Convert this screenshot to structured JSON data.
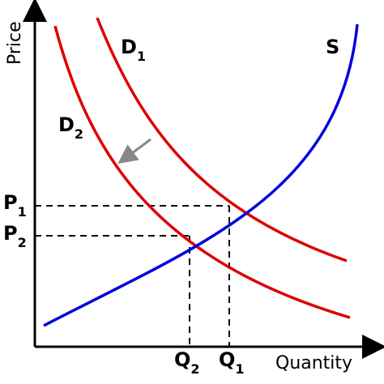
{
  "axes": {
    "x_label": "Quantity",
    "y_label": "Price"
  },
  "curves": {
    "supply": {
      "label": "S",
      "color": "#0000dd"
    },
    "demand_original": {
      "label": "D",
      "subscript": "1",
      "color": "#dd0000"
    },
    "demand_shifted": {
      "label": "D",
      "subscript": "2",
      "color": "#dd0000"
    }
  },
  "shift_arrow": {
    "color": "#888888",
    "direction": "down-left"
  },
  "equilibria": {
    "e1": {
      "price_label": "P",
      "price_sub": "1",
      "qty_label": "Q",
      "qty_sub": "1"
    },
    "e2": {
      "price_label": "P",
      "price_sub": "2",
      "qty_label": "Q",
      "qty_sub": "2"
    }
  }
}
